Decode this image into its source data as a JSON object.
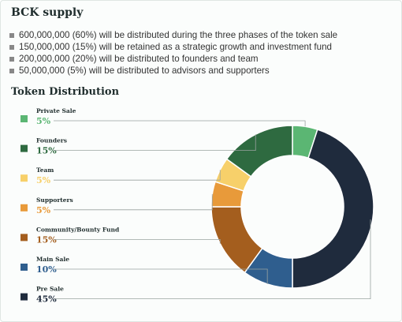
{
  "supply": {
    "title": "BCK supply",
    "bullets": [
      "600,000,000 (60%) will be distributed during the three phases of the token sale",
      "150,000,000 (15%) will be retained as a strategic growth and investment fund",
      "200,000,000 (20%) will be distributed to founders and team",
      "50,000,000 (5%) will be distributed to advisors and supporters"
    ]
  },
  "chart_data": {
    "type": "pie",
    "donut": true,
    "title": "Token Distribution",
    "legend_placement": "left",
    "slices": [
      {
        "name": "Private Sale",
        "label": "5%",
        "value": 5,
        "color": "#5bb673"
      },
      {
        "name": "Pre Sale",
        "label": "45%",
        "value": 45,
        "color": "#1f2b3d"
      },
      {
        "name": "Main Sale",
        "label": "10%",
        "value": 10,
        "color": "#2f5e8e"
      },
      {
        "name": "Community/Bounty Fund",
        "label": "15%",
        "value": 15,
        "color": "#a45e1e"
      },
      {
        "name": "Supporters",
        "label": "5%",
        "value": 5,
        "color": "#e89a3a"
      },
      {
        "name": "Team",
        "label": "5%",
        "value": 5,
        "color": "#f7d06a"
      },
      {
        "name": "Founders",
        "label": "15%",
        "value": 15,
        "color": "#2e6a40"
      }
    ],
    "legend_order": [
      "Private Sale",
      "Founders",
      "Team",
      "Supporters",
      "Community/Bounty Fund",
      "Main Sale",
      "Pre Sale"
    ]
  }
}
